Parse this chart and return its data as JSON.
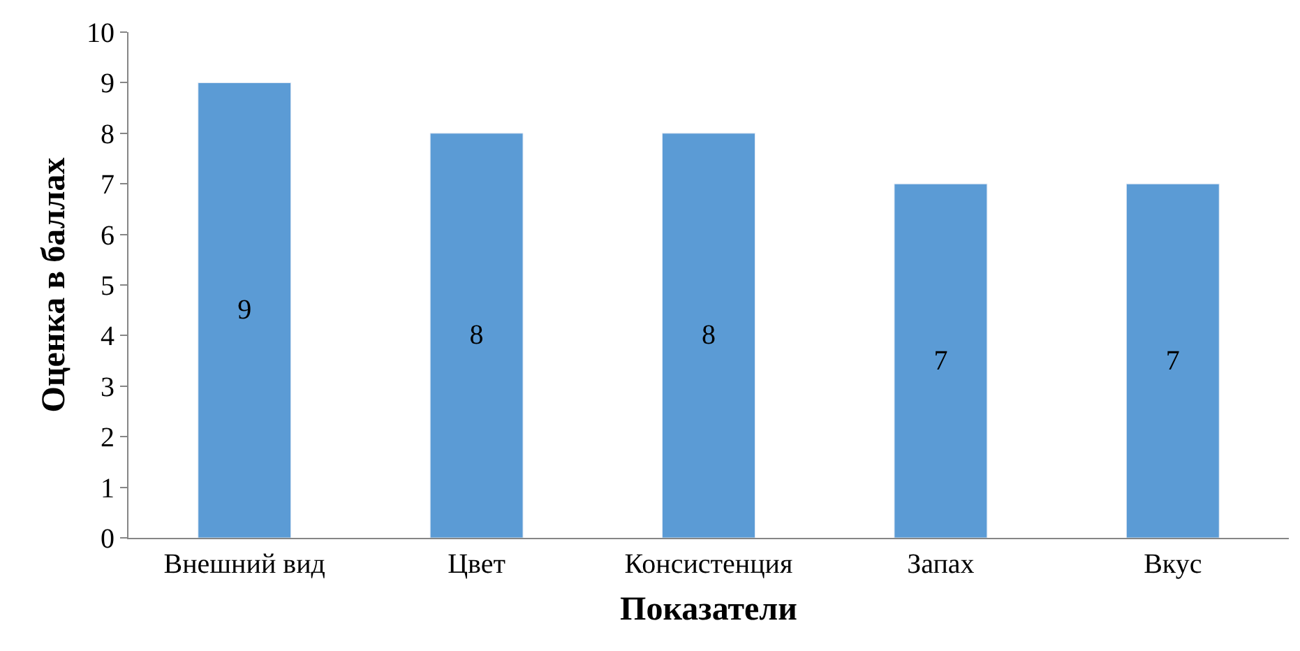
{
  "chart_data": {
    "type": "bar",
    "xlabel": "Показатели",
    "ylabel": "Оценка в баллах",
    "categories": [
      "Внешний вид",
      "Цвет",
      "Консистенция",
      "Запах",
      "Вкус"
    ],
    "values": [
      9,
      8,
      8,
      7,
      7
    ],
    "color": "#5b9bd5",
    "ylim": [
      0,
      10
    ],
    "yticks": [
      0,
      1,
      2,
      3,
      4,
      5,
      6,
      7,
      8,
      9,
      10
    ],
    "grid": false,
    "legend": false,
    "data_labels": true
  }
}
